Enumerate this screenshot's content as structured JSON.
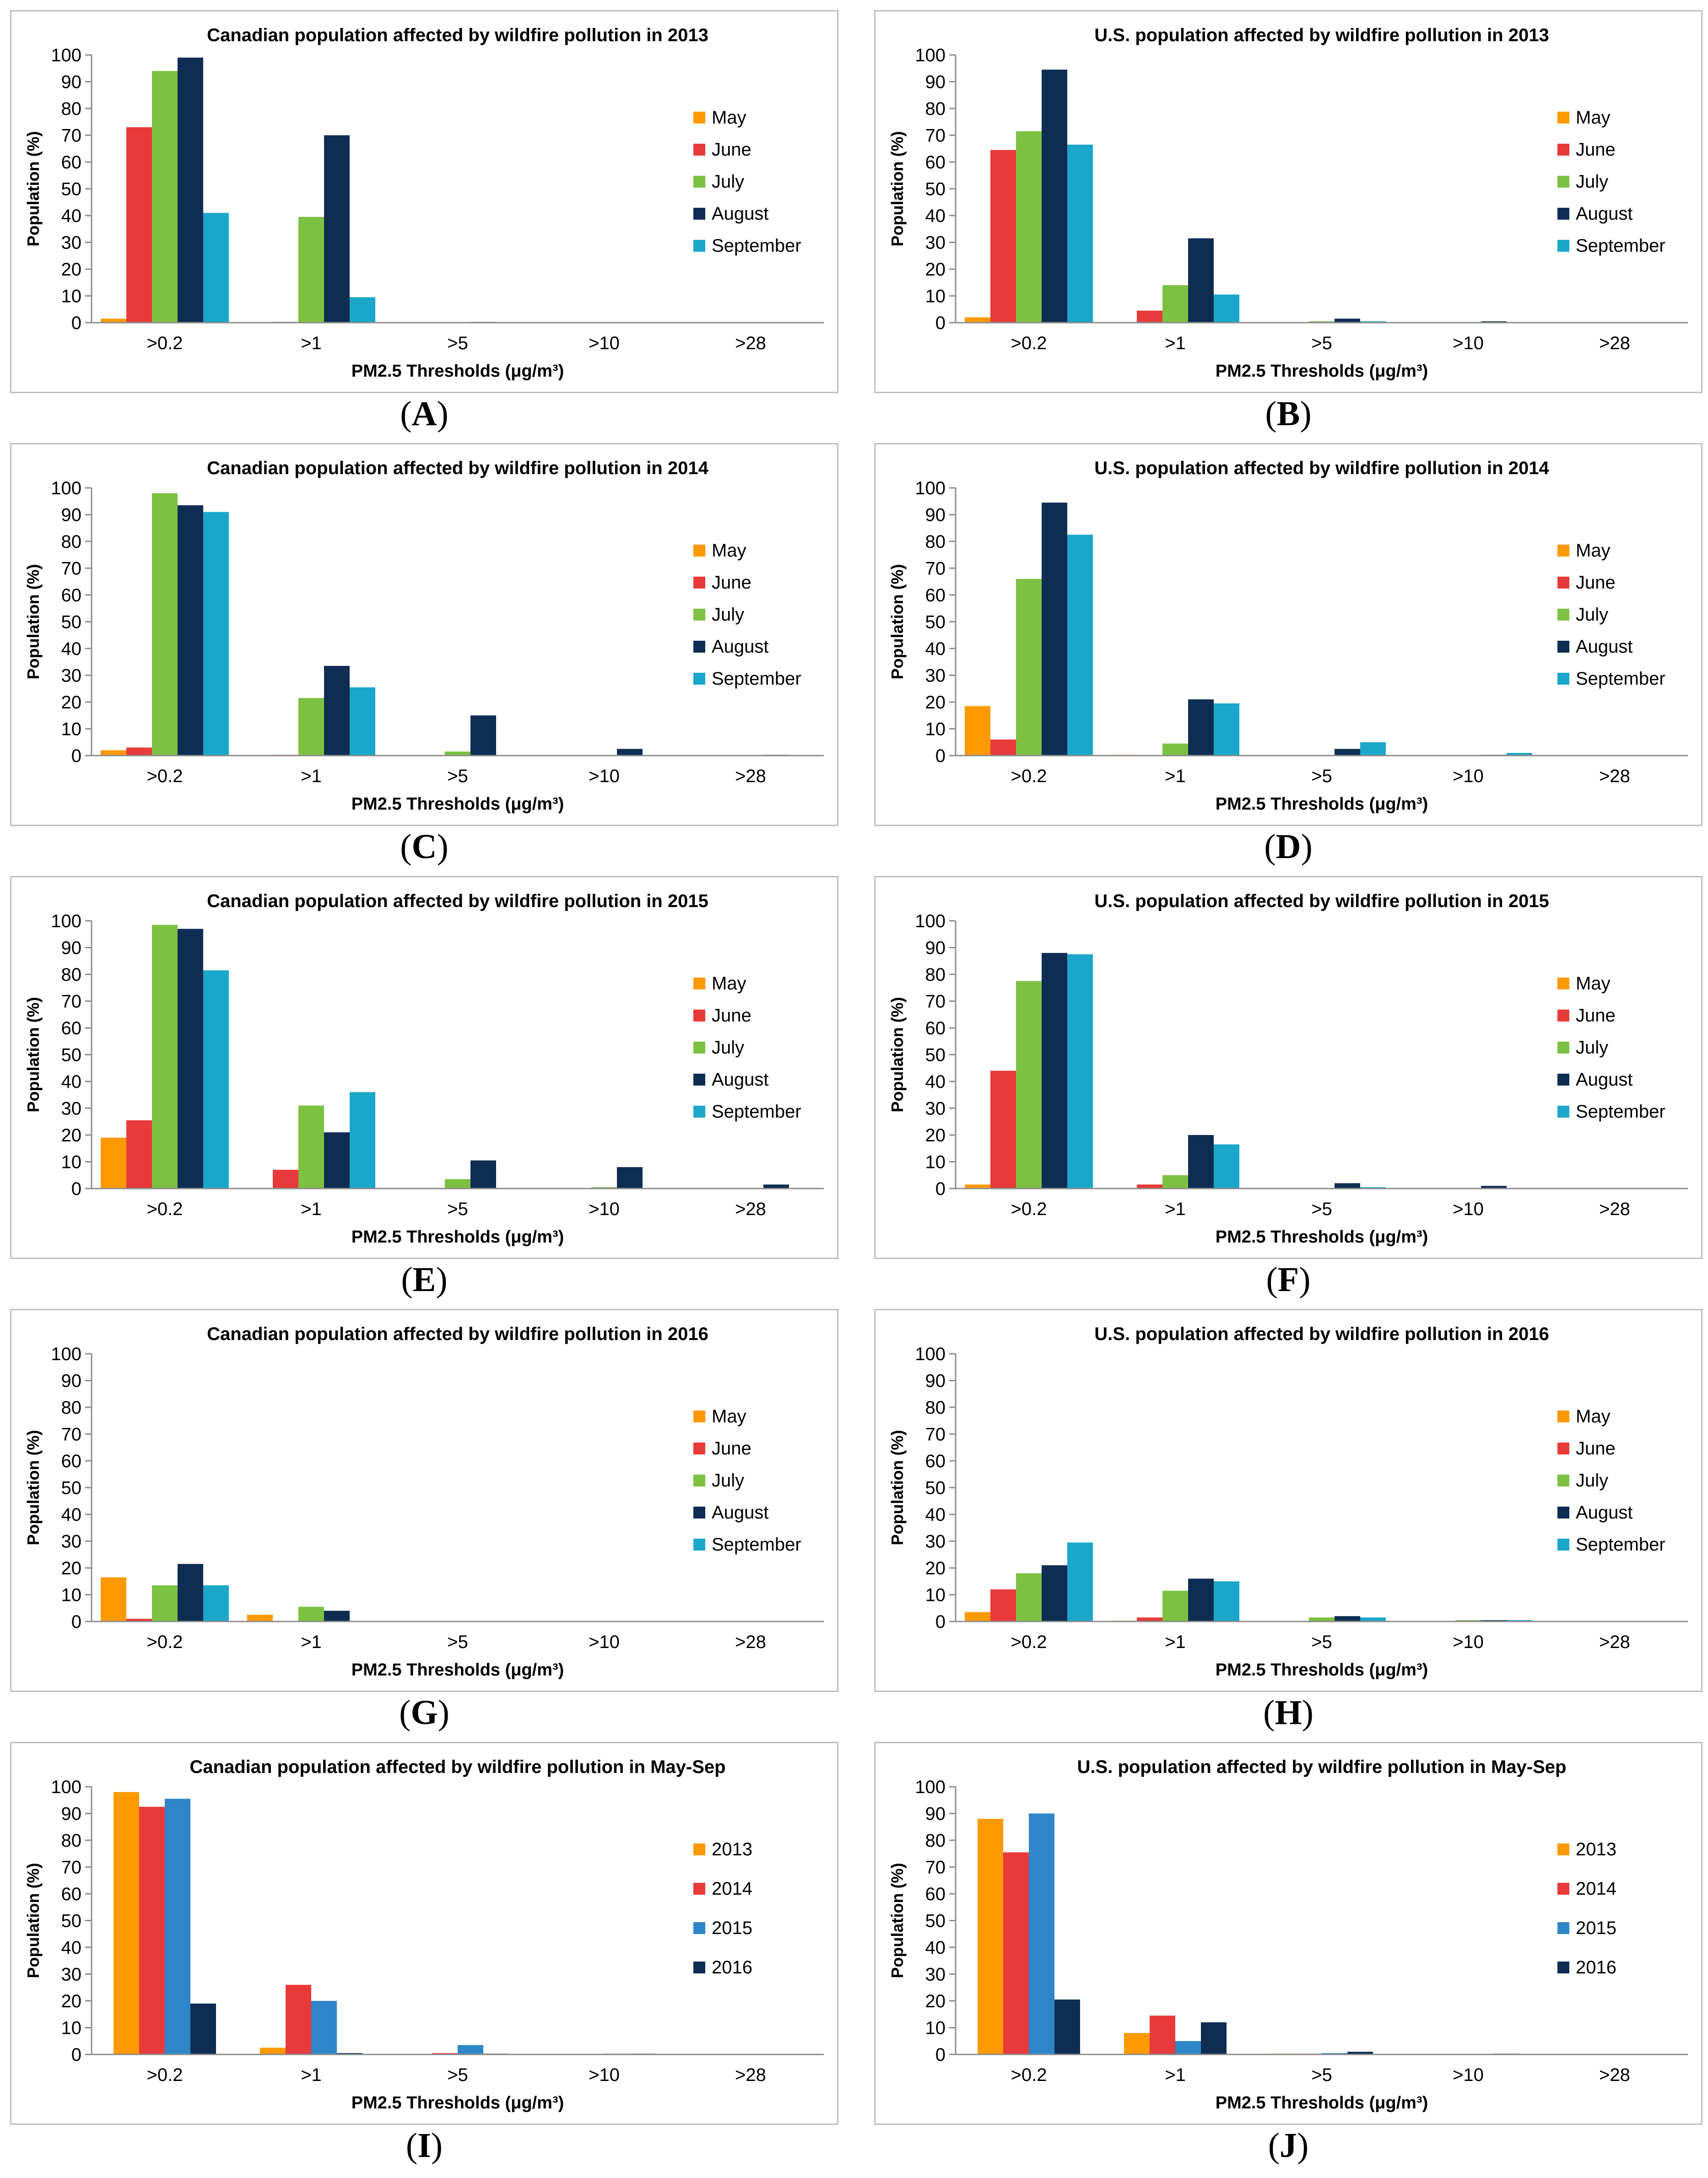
{
  "figure": {
    "panels": [
      {
        "id": "A",
        "label_text": "A",
        "chart_data": {
          "type": "bar",
          "title": "Canadian population affected by wildfire pollution in 2013",
          "xlabel": "PM2.5 Thresholds (μg/m³)",
          "xlabel_sub_style": true,
          "ylabel": "Population (%)",
          "ylim": [
            0,
            100
          ],
          "yticks": [
            0,
            10,
            20,
            30,
            40,
            50,
            60,
            70,
            80,
            90,
            100
          ],
          "categories": [
            ">0.2",
            ">1",
            ">5",
            ">10",
            ">28"
          ],
          "series": [
            {
              "name": "May",
              "color": "#ff9900",
              "values": [
                1.5,
                0,
                0,
                0,
                0
              ]
            },
            {
              "name": "June",
              "color": "#e83a3a",
              "values": [
                73,
                0.3,
                0,
                0,
                0
              ]
            },
            {
              "name": "July",
              "color": "#7dc142",
              "values": [
                94,
                39.5,
                0,
                0,
                0
              ]
            },
            {
              "name": "August",
              "color": "#0f2d53",
              "values": [
                99,
                70,
                0.3,
                0,
                0
              ]
            },
            {
              "name": "September",
              "color": "#1aa7c9",
              "values": [
                41,
                9.5,
                0,
                0,
                0
              ]
            }
          ]
        }
      },
      {
        "id": "B",
        "label_text": "B",
        "chart_data": {
          "type": "bar",
          "title": "U.S. population affected by wildfire pollution in 2013",
          "xlabel": "PM2.5 Thresholds (μg/m³)",
          "xlabel_sub_style": true,
          "ylabel": "Population (%)",
          "ylim": [
            0,
            100
          ],
          "yticks": [
            0,
            10,
            20,
            30,
            40,
            50,
            60,
            70,
            80,
            90,
            100
          ],
          "categories": [
            ">0.2",
            ">1",
            ">5",
            ">10",
            ">28"
          ],
          "series": [
            {
              "name": "May",
              "color": "#ff9900",
              "values": [
                2,
                0,
                0,
                0,
                0
              ]
            },
            {
              "name": "June",
              "color": "#e83a3a",
              "values": [
                64.5,
                4.5,
                0.2,
                0,
                0
              ]
            },
            {
              "name": "July",
              "color": "#7dc142",
              "values": [
                71.5,
                14,
                0.5,
                0.2,
                0
              ]
            },
            {
              "name": "August",
              "color": "#0f2d53",
              "values": [
                94.5,
                31.5,
                1.5,
                0.5,
                0
              ]
            },
            {
              "name": "September",
              "color": "#1aa7c9",
              "values": [
                66.5,
                10.5,
                0.5,
                0,
                0
              ]
            }
          ]
        }
      },
      {
        "id": "C",
        "label_text": "C",
        "chart_data": {
          "type": "bar",
          "title": "Canadian population affected by wildfire pollution in 2014",
          "xlabel": "PM2.5 Thresholds (μg/m³)",
          "xlabel_sub_style": false,
          "ylabel": "Population (%)",
          "ylim": [
            0,
            100
          ],
          "yticks": [
            0,
            10,
            20,
            30,
            40,
            50,
            60,
            70,
            80,
            90,
            100
          ],
          "categories": [
            ">0.2",
            ">1",
            ">5",
            ">10",
            ">28"
          ],
          "series": [
            {
              "name": "May",
              "color": "#ff9900",
              "values": [
                2,
                0,
                0,
                0,
                0
              ]
            },
            {
              "name": "June",
              "color": "#e83a3a",
              "values": [
                3,
                0.3,
                0,
                0,
                0
              ]
            },
            {
              "name": "July",
              "color": "#7dc142",
              "values": [
                98,
                21.5,
                1.5,
                0,
                0
              ]
            },
            {
              "name": "August",
              "color": "#0f2d53",
              "values": [
                93.5,
                33.5,
                15,
                2.5,
                0.3
              ]
            },
            {
              "name": "September",
              "color": "#1aa7c9",
              "values": [
                91,
                25.5,
                0,
                0,
                0
              ]
            }
          ]
        }
      },
      {
        "id": "D",
        "label_text": "D",
        "chart_data": {
          "type": "bar",
          "title": "U.S. population affected by wildfire pollution in 2014",
          "xlabel": "PM2.5 Thresholds (μg/m³)",
          "xlabel_sub_style": false,
          "ylabel": "Population (%)",
          "ylim": [
            0,
            100
          ],
          "yticks": [
            0,
            10,
            20,
            30,
            40,
            50,
            60,
            70,
            80,
            90,
            100
          ],
          "categories": [
            ">0.2",
            ">1",
            ">5",
            ">10",
            ">28"
          ],
          "series": [
            {
              "name": "May",
              "color": "#ff9900",
              "values": [
                18.5,
                0.3,
                0,
                0,
                0
              ]
            },
            {
              "name": "June",
              "color": "#e83a3a",
              "values": [
                6,
                0,
                0,
                0,
                0
              ]
            },
            {
              "name": "July",
              "color": "#7dc142",
              "values": [
                66,
                4.5,
                0,
                0,
                0
              ]
            },
            {
              "name": "August",
              "color": "#0f2d53",
              "values": [
                94.5,
                21,
                2.5,
                0.3,
                0
              ]
            },
            {
              "name": "September",
              "color": "#1aa7c9",
              "values": [
                82.5,
                19.5,
                5,
                1,
                0
              ]
            }
          ]
        }
      },
      {
        "id": "E",
        "label_text": "E",
        "chart_data": {
          "type": "bar",
          "title": "Canadian population affected by wildfire pollution in 2015",
          "xlabel": "PM2.5 Thresholds (μg/m³)",
          "xlabel_sub_style": false,
          "ylabel": "Population (%)",
          "ylim": [
            0,
            100
          ],
          "yticks": [
            0,
            10,
            20,
            30,
            40,
            50,
            60,
            70,
            80,
            90,
            100
          ],
          "categories": [
            ">0.2",
            ">1",
            ">5",
            ">10",
            ">28"
          ],
          "series": [
            {
              "name": "May",
              "color": "#ff9900",
              "values": [
                19,
                0,
                0,
                0,
                0
              ]
            },
            {
              "name": "June",
              "color": "#e83a3a",
              "values": [
                25.5,
                7,
                0,
                0,
                0
              ]
            },
            {
              "name": "July",
              "color": "#7dc142",
              "values": [
                98.5,
                31,
                3.5,
                0.5,
                0
              ]
            },
            {
              "name": "August",
              "color": "#0f2d53",
              "values": [
                97,
                21,
                10.5,
                8,
                1.5
              ]
            },
            {
              "name": "September",
              "color": "#1aa7c9",
              "values": [
                81.5,
                36,
                0,
                0,
                0
              ]
            }
          ]
        }
      },
      {
        "id": "F",
        "label_text": "F",
        "chart_data": {
          "type": "bar",
          "title": "U.S. population affected by wildfire pollution in 2015",
          "xlabel": "PM2.5 Thresholds (μg/m³)",
          "xlabel_sub_style": false,
          "ylabel": "Population (%)",
          "ylim": [
            0,
            100
          ],
          "yticks": [
            0,
            10,
            20,
            30,
            40,
            50,
            60,
            70,
            80,
            90,
            100
          ],
          "categories": [
            ">0.2",
            ">1",
            ">5",
            ">10",
            ">28"
          ],
          "series": [
            {
              "name": "May",
              "color": "#ff9900",
              "values": [
                1.5,
                0,
                0,
                0,
                0
              ]
            },
            {
              "name": "June",
              "color": "#e83a3a",
              "values": [
                44,
                1.5,
                0.2,
                0,
                0
              ]
            },
            {
              "name": "July",
              "color": "#7dc142",
              "values": [
                77.5,
                5,
                0.2,
                0,
                0
              ]
            },
            {
              "name": "August",
              "color": "#0f2d53",
              "values": [
                88,
                20,
                2,
                1,
                0
              ]
            },
            {
              "name": "September",
              "color": "#1aa7c9",
              "values": [
                87.5,
                16.5,
                0.5,
                0.2,
                0.2
              ]
            }
          ]
        }
      },
      {
        "id": "G",
        "label_text": "G",
        "chart_data": {
          "type": "bar",
          "title": "Canadian population affected by wildfire pollution in 2016",
          "xlabel": "PM2.5 Thresholds (μg/m³)",
          "xlabel_sub_style": false,
          "ylabel": "Population (%)",
          "ylim": [
            0,
            100
          ],
          "yticks": [
            0,
            10,
            20,
            30,
            40,
            50,
            60,
            70,
            80,
            90,
            100
          ],
          "categories": [
            ">0.2",
            ">1",
            ">5",
            ">10",
            ">28"
          ],
          "series": [
            {
              "name": "May",
              "color": "#ff9900",
              "values": [
                16.5,
                2.5,
                0.2,
                0,
                0.2
              ]
            },
            {
              "name": "June",
              "color": "#e83a3a",
              "values": [
                1,
                0,
                0,
                0,
                0
              ]
            },
            {
              "name": "July",
              "color": "#7dc142",
              "values": [
                13.5,
                5.5,
                0,
                0,
                0
              ]
            },
            {
              "name": "August",
              "color": "#0f2d53",
              "values": [
                21.5,
                4,
                0,
                0,
                0
              ]
            },
            {
              "name": "September",
              "color": "#1aa7c9",
              "values": [
                13.5,
                0,
                0,
                0,
                0
              ]
            }
          ]
        }
      },
      {
        "id": "H",
        "label_text": "H",
        "chart_data": {
          "type": "bar",
          "title": "U.S. population affected by wildfire pollution in 2016",
          "xlabel": "PM2.5 Thresholds (μg/m³)",
          "xlabel_sub_style": false,
          "ylabel": "Population (%)",
          "ylim": [
            0,
            100
          ],
          "yticks": [
            0,
            10,
            20,
            30,
            40,
            50,
            60,
            70,
            80,
            90,
            100
          ],
          "categories": [
            ">0.2",
            ">1",
            ">5",
            ">10",
            ">28"
          ],
          "series": [
            {
              "name": "May",
              "color": "#ff9900",
              "values": [
                3.5,
                0.3,
                0,
                0,
                0
              ]
            },
            {
              "name": "June",
              "color": "#e83a3a",
              "values": [
                12,
                1.5,
                0,
                0,
                0
              ]
            },
            {
              "name": "July",
              "color": "#7dc142",
              "values": [
                18,
                11.5,
                1.5,
                0.5,
                0
              ]
            },
            {
              "name": "August",
              "color": "#0f2d53",
              "values": [
                21,
                16,
                2,
                0.5,
                0
              ]
            },
            {
              "name": "September",
              "color": "#1aa7c9",
              "values": [
                29.5,
                15,
                1.5,
                0.5,
                0
              ]
            }
          ]
        }
      },
      {
        "id": "I",
        "label_text": "I",
        "chart_data": {
          "type": "bar",
          "title": "Canadian population affected by wildfire pollution in May-Sep",
          "xlabel": "PM2.5 Thresholds (μg/m³)",
          "xlabel_sub_style": false,
          "ylabel": "Population (%)",
          "ylim": [
            0,
            100
          ],
          "yticks": [
            0,
            10,
            20,
            30,
            40,
            50,
            60,
            70,
            80,
            90,
            100
          ],
          "categories": [
            ">0.2",
            ">1",
            ">5",
            ">10",
            ">28"
          ],
          "series": [
            {
              "name": "2013",
              "color": "#ff9900",
              "values": [
                98,
                2.5,
                0,
                0,
                0
              ]
            },
            {
              "name": "2014",
              "color": "#e83a3a",
              "values": [
                92.5,
                26,
                0.5,
                0,
                0
              ]
            },
            {
              "name": "2015",
              "color": "#2e86c8",
              "values": [
                95.5,
                20,
                3.5,
                0.3,
                0
              ]
            },
            {
              "name": "2016",
              "color": "#0f2d53",
              "values": [
                19,
                0.5,
                0.3,
                0.3,
                0
              ]
            }
          ]
        }
      },
      {
        "id": "J",
        "label_text": "J",
        "chart_data": {
          "type": "bar",
          "title": "U.S. population affected by wildfire pollution in May-Sep",
          "xlabel": "PM2.5 Thresholds (μg/m³)",
          "xlabel_sub_style": false,
          "ylabel": "Population (%)",
          "ylim": [
            0,
            100
          ],
          "yticks": [
            0,
            10,
            20,
            30,
            40,
            50,
            60,
            70,
            80,
            90,
            100
          ],
          "categories": [
            ">0.2",
            ">1",
            ">5",
            ">10",
            ">28"
          ],
          "series": [
            {
              "name": "2013",
              "color": "#ff9900",
              "values": [
                88,
                8,
                0.3,
                0,
                0
              ]
            },
            {
              "name": "2014",
              "color": "#e83a3a",
              "values": [
                75.5,
                14.5,
                0.3,
                0,
                0
              ]
            },
            {
              "name": "2015",
              "color": "#2e86c8",
              "values": [
                90,
                5,
                0.5,
                0.2,
                0
              ]
            },
            {
              "name": "2016",
              "color": "#0f2d53",
              "values": [
                20.5,
                12,
                1,
                0.3,
                0
              ]
            }
          ]
        }
      }
    ]
  }
}
